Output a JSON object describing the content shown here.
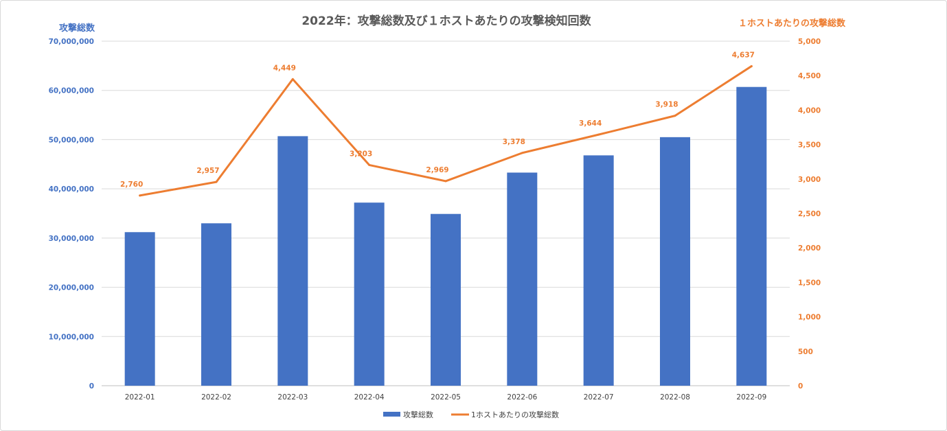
{
  "chart_data": {
    "type": "bar",
    "title": "2022年：攻撃総数及び１ホストあたりの攻撃検知回数",
    "categories": [
      "2022-01",
      "2022-02",
      "2022-03",
      "2022-04",
      "2022-05",
      "2022-06",
      "2022-07",
      "2022-08",
      "2022-09"
    ],
    "y_left": {
      "label": "攻撃総数",
      "lim": [
        0,
        70000000
      ],
      "ticks": [
        0,
        10000000,
        20000000,
        30000000,
        40000000,
        50000000,
        60000000,
        70000000
      ],
      "tick_labels": [
        "0",
        "10,000,000",
        "20,000,000",
        "30,000,000",
        "40,000,000",
        "50,000,000",
        "60,000,000",
        "70,000,000"
      ]
    },
    "y_right": {
      "label": "１ホストあたりの攻撃総数",
      "lim": [
        0,
        5000
      ],
      "ticks": [
        0,
        500,
        1000,
        1500,
        2000,
        2500,
        3000,
        3500,
        4000,
        4500,
        5000
      ],
      "tick_labels": [
        "0",
        "500",
        "1,000",
        "1,500",
        "2,000",
        "2,500",
        "3,000",
        "3,500",
        "4,000",
        "4,500",
        "5,000"
      ]
    },
    "series": [
      {
        "name": "攻撃総数",
        "type": "bar",
        "axis": "left",
        "color": "#4472c4",
        "values": [
          31200000,
          33000000,
          50700000,
          37200000,
          34900000,
          43300000,
          46800000,
          50500000,
          60700000
        ]
      },
      {
        "name": "1ホストあたりの攻撃総数",
        "type": "line",
        "axis": "right",
        "color": "#ed7d31",
        "values": [
          2760,
          2957,
          4449,
          3203,
          2969,
          3378,
          3644,
          3918,
          4637
        ],
        "data_labels": [
          "2,760",
          "2,957",
          "4,449",
          "3,203",
          "2,969",
          "3,378",
          "3,644",
          "3,918",
          "4,637"
        ]
      }
    ],
    "grid": true,
    "legend_position": "bottom"
  }
}
